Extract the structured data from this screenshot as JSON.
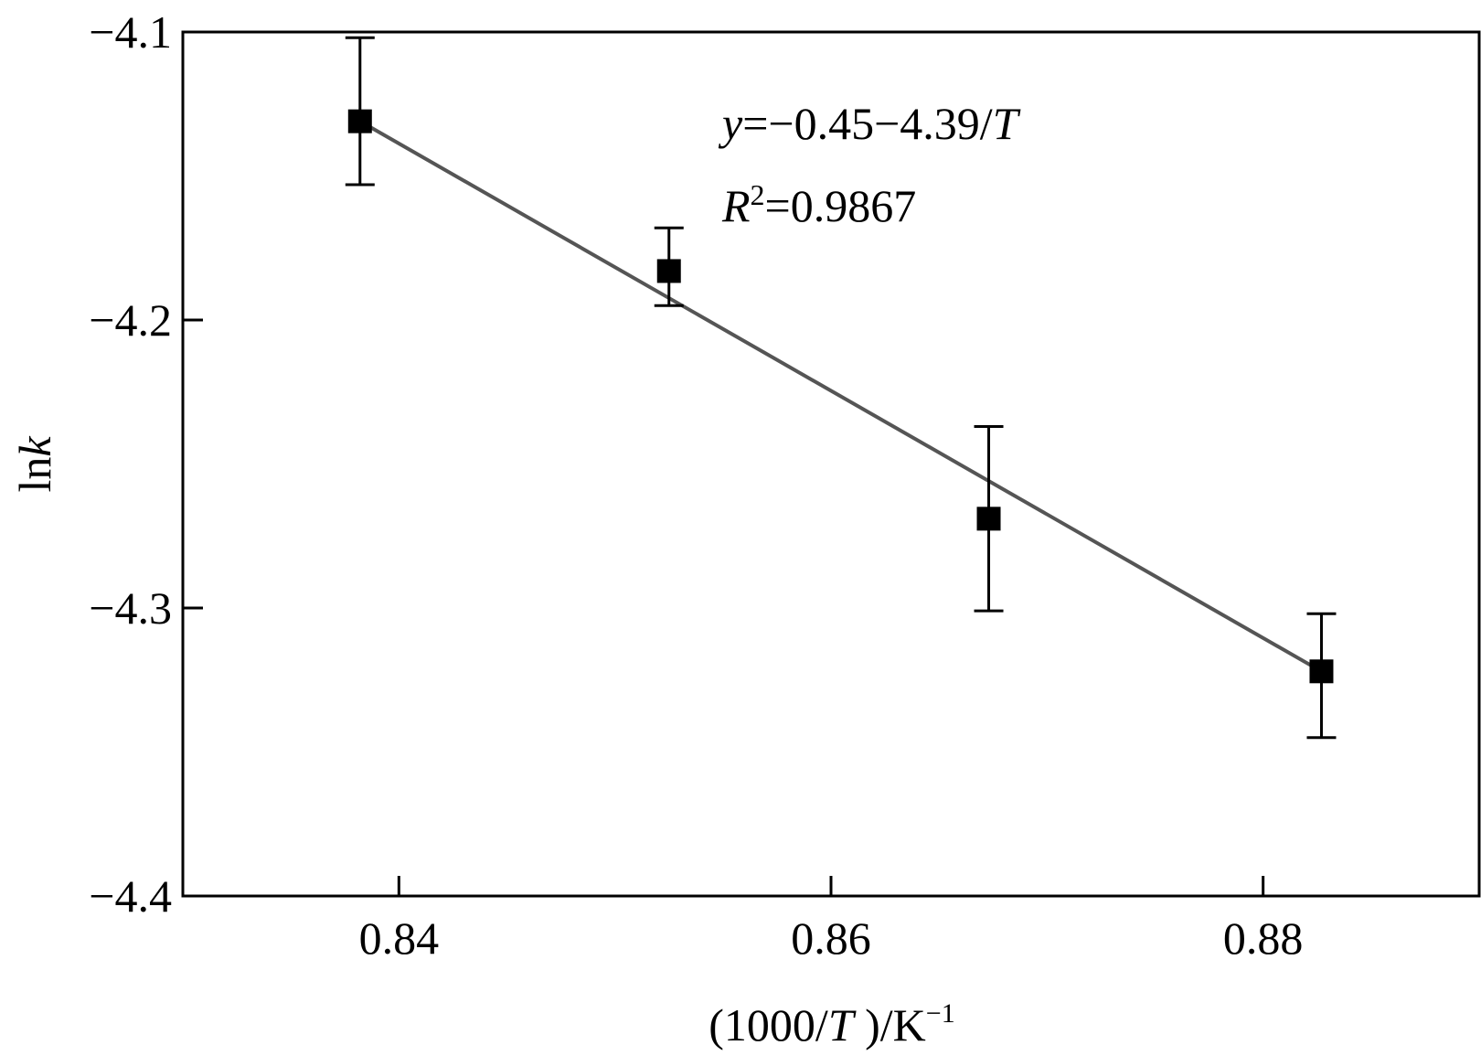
{
  "chart_data": {
    "type": "scatter",
    "xlabel": {
      "prefix": "(1000/",
      "var": "T",
      "suffix": " )/K",
      "sup": "−1"
    },
    "ylabel": {
      "prefix": "ln",
      "var": "k"
    },
    "xlim": [
      0.83,
      0.89
    ],
    "ylim": [
      -4.4,
      -4.1
    ],
    "x_ticks": [
      0.84,
      0.86,
      0.88
    ],
    "x_tick_labels": [
      "0.84",
      "0.86",
      "0.88"
    ],
    "y_ticks": [
      -4.1,
      -4.2,
      -4.3,
      -4.4
    ],
    "y_tick_labels": [
      "−4.1",
      "−4.2",
      "−4.3",
      "−4.4"
    ],
    "grid": false,
    "points": [
      {
        "x": 0.8382,
        "y": -4.131,
        "err_low": -4.153,
        "err_high": -4.102
      },
      {
        "x": 0.8525,
        "y": -4.183,
        "err_low": -4.195,
        "err_high": -4.168
      },
      {
        "x": 0.8673,
        "y": -4.269,
        "err_low": -4.301,
        "err_high": -4.237
      },
      {
        "x": 0.8827,
        "y": -4.322,
        "err_low": -4.345,
        "err_high": -4.302
      }
    ],
    "fit_line": {
      "x": [
        0.8382,
        0.8827
      ],
      "y": [
        -4.131,
        -4.322
      ],
      "color": "#555555"
    },
    "annotation": {
      "eq_var": "y",
      "eq_mid": "=−0.45−4.39/",
      "eq_var2": "T",
      "r2_var": "R",
      "r2_sup": "2",
      "r2_val": "=0.9867"
    },
    "marker_color": "#000000"
  }
}
